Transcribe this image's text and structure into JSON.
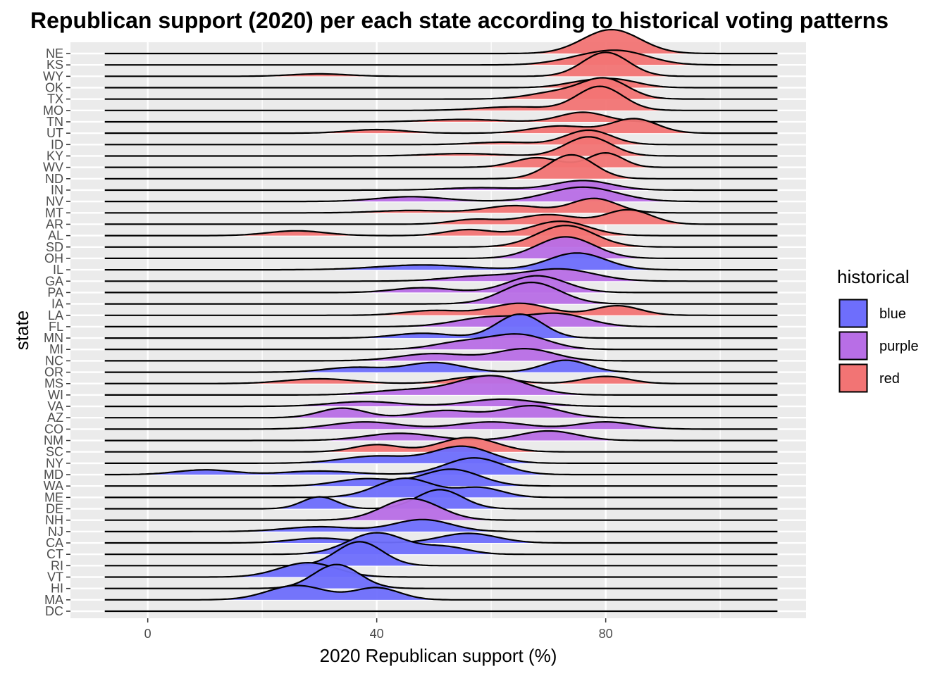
{
  "chart_data": {
    "type": "ridgeline",
    "title": "Republican support (2020) per each state according to historical voting patterns",
    "xlabel": "2020 Republican support (%)",
    "ylabel": "state",
    "xlim": [
      -13.5,
      115
    ],
    "x_ticks": [
      0,
      40,
      80
    ],
    "x_ticks_labels": [
      "0",
      "40",
      "80"
    ],
    "grid": true,
    "legend": {
      "title": "historical",
      "position": "right",
      "entries": [
        {
          "name": "blue",
          "color": "#6e6efc"
        },
        {
          "name": "purple",
          "color": "#b86ee6"
        },
        {
          "name": "red",
          "color": "#f27474"
        }
      ]
    },
    "states": [
      {
        "state": "NE",
        "group": "red",
        "peaks": [
          [
            81,
            5,
            1.0
          ]
        ]
      },
      {
        "state": "KS",
        "group": "red",
        "peaks": [
          [
            76,
            5,
            0.25
          ],
          [
            83,
            5,
            0.5
          ]
        ]
      },
      {
        "state": "WY",
        "group": "red",
        "peaks": [
          [
            30,
            5,
            0.1
          ],
          [
            80,
            4,
            1.0
          ]
        ]
      },
      {
        "state": "OK",
        "group": "red",
        "peaks": [
          [
            76,
            4,
            0.2
          ],
          [
            82,
            4,
            0.3
          ]
        ]
      },
      {
        "state": "TX",
        "group": "red",
        "peaks": [
          [
            72,
            5,
            0.3
          ],
          [
            80,
            4,
            0.8
          ]
        ]
      },
      {
        "state": "MO",
        "group": "red",
        "peaks": [
          [
            64,
            6,
            0.15
          ],
          [
            79,
            4,
            1.0
          ]
        ]
      },
      {
        "state": "TN",
        "group": "red",
        "peaks": [
          [
            55,
            6,
            0.1
          ],
          [
            76,
            4,
            0.4
          ]
        ]
      },
      {
        "state": "UT",
        "group": "red",
        "peaks": [
          [
            40,
            5,
            0.15
          ],
          [
            72,
            5,
            0.3
          ],
          [
            85,
            4,
            0.6
          ]
        ]
      },
      {
        "state": "ID",
        "group": "red",
        "peaks": [
          [
            62,
            5,
            0.1
          ],
          [
            77,
            4,
            0.6
          ]
        ]
      },
      {
        "state": "KY",
        "group": "red",
        "peaks": [
          [
            55,
            6,
            0.1
          ],
          [
            77,
            4,
            0.8
          ]
        ]
      },
      {
        "state": "WV",
        "group": "red",
        "peaks": [
          [
            68,
            4,
            0.4
          ],
          [
            80,
            3,
            0.6
          ]
        ]
      },
      {
        "state": "ND",
        "group": "red",
        "peaks": [
          [
            74,
            4,
            1.0
          ]
        ]
      },
      {
        "state": "IN",
        "group": "purple",
        "peaks": [
          [
            58,
            6,
            0.1
          ],
          [
            76,
            5,
            0.4
          ]
        ]
      },
      {
        "state": "NV",
        "group": "purple",
        "peaks": [
          [
            46,
            6,
            0.2
          ],
          [
            76,
            6,
            0.6
          ]
        ]
      },
      {
        "state": "MT",
        "group": "red",
        "peaks": [
          [
            46,
            6,
            0.1
          ],
          [
            64,
            5,
            0.3
          ],
          [
            78,
            4,
            0.6
          ]
        ]
      },
      {
        "state": "AR",
        "group": "red",
        "peaks": [
          [
            57,
            4,
            0.2
          ],
          [
            70,
            5,
            0.4
          ],
          [
            84,
            4,
            0.6
          ]
        ]
      },
      {
        "state": "AL",
        "group": "red",
        "peaks": [
          [
            26,
            5,
            0.2
          ],
          [
            56,
            4,
            0.25
          ],
          [
            72,
            5,
            0.6
          ]
        ]
      },
      {
        "state": "SD",
        "group": "red",
        "peaks": [
          [
            73,
            5,
            0.9
          ]
        ]
      },
      {
        "state": "OH",
        "group": "purple",
        "peaks": [
          [
            73,
            5,
            0.9
          ]
        ]
      },
      {
        "state": "IL",
        "group": "blue",
        "peaks": [
          [
            48,
            8,
            0.2
          ],
          [
            75,
            5,
            0.7
          ]
        ]
      },
      {
        "state": "GA",
        "group": "purple",
        "peaks": [
          [
            58,
            6,
            0.2
          ],
          [
            72,
            6,
            0.5
          ]
        ]
      },
      {
        "state": "PA",
        "group": "purple",
        "peaks": [
          [
            48,
            5,
            0.2
          ],
          [
            68,
            5,
            0.7
          ]
        ]
      },
      {
        "state": "IA",
        "group": "purple",
        "peaks": [
          [
            67,
            5,
            0.9
          ]
        ]
      },
      {
        "state": "LA",
        "group": "red",
        "peaks": [
          [
            50,
            5,
            0.2
          ],
          [
            65,
            5,
            0.5
          ],
          [
            82,
            4,
            0.4
          ]
        ]
      },
      {
        "state": "FL",
        "group": "purple",
        "peaks": [
          [
            60,
            6,
            0.4
          ],
          [
            72,
            5,
            0.5
          ]
        ]
      },
      {
        "state": "MN",
        "group": "blue",
        "peaks": [
          [
            48,
            5,
            0.2
          ],
          [
            65,
            4,
            1.0
          ]
        ]
      },
      {
        "state": "MI",
        "group": "purple",
        "peaks": [
          [
            55,
            5,
            0.3
          ],
          [
            65,
            5,
            0.6
          ]
        ]
      },
      {
        "state": "NC",
        "group": "purple",
        "peaks": [
          [
            50,
            6,
            0.3
          ],
          [
            66,
            5,
            0.5
          ]
        ]
      },
      {
        "state": "OR",
        "group": "blue",
        "peaks": [
          [
            36,
            5,
            0.2
          ],
          [
            50,
            5,
            0.4
          ],
          [
            73,
            4,
            0.5
          ]
        ]
      },
      {
        "state": "MS",
        "group": "red",
        "peaks": [
          [
            30,
            6,
            0.2
          ],
          [
            58,
            5,
            0.3
          ],
          [
            80,
            4,
            0.3
          ]
        ]
      },
      {
        "state": "WI",
        "group": "purple",
        "peaks": [
          [
            45,
            6,
            0.2
          ],
          [
            60,
            6,
            0.8
          ]
        ]
      },
      {
        "state": "VA",
        "group": "purple",
        "peaks": [
          [
            38,
            6,
            0.2
          ],
          [
            62,
            6,
            0.3
          ]
        ]
      },
      {
        "state": "AZ",
        "group": "purple",
        "peaks": [
          [
            34,
            4,
            0.4
          ],
          [
            52,
            5,
            0.3
          ],
          [
            67,
            5,
            0.5
          ]
        ]
      },
      {
        "state": "CO",
        "group": "purple",
        "peaks": [
          [
            38,
            6,
            0.3
          ],
          [
            60,
            6,
            0.3
          ],
          [
            80,
            5,
            0.3
          ]
        ]
      },
      {
        "state": "NM",
        "group": "purple",
        "peaks": [
          [
            44,
            6,
            0.3
          ],
          [
            70,
            5,
            0.4
          ]
        ]
      },
      {
        "state": "SC",
        "group": "red",
        "peaks": [
          [
            40,
            4,
            0.3
          ],
          [
            56,
            5,
            0.6
          ]
        ]
      },
      {
        "state": "NY",
        "group": "blue",
        "peaks": [
          [
            40,
            6,
            0.3
          ],
          [
            55,
            5,
            0.7
          ]
        ]
      },
      {
        "state": "MD",
        "group": "blue",
        "peaks": [
          [
            10,
            5,
            0.2
          ],
          [
            30,
            6,
            0.15
          ],
          [
            57,
            5,
            0.7
          ]
        ]
      },
      {
        "state": "WA",
        "group": "blue",
        "peaks": [
          [
            38,
            5,
            0.3
          ],
          [
            53,
            5,
            0.7
          ]
        ]
      },
      {
        "state": "ME",
        "group": "blue",
        "peaks": [
          [
            45,
            5,
            0.8
          ],
          [
            58,
            4,
            0.4
          ]
        ]
      },
      {
        "state": "DE",
        "group": "blue",
        "peaks": [
          [
            30,
            3,
            0.5
          ],
          [
            51,
            4,
            0.8
          ]
        ]
      },
      {
        "state": "NH",
        "group": "purple",
        "peaks": [
          [
            46,
            5,
            0.9
          ]
        ]
      },
      {
        "state": "NJ",
        "group": "blue",
        "peaks": [
          [
            30,
            6,
            0.2
          ],
          [
            48,
            5,
            0.5
          ]
        ]
      },
      {
        "state": "CA",
        "group": "blue",
        "peaks": [
          [
            30,
            5,
            0.2
          ],
          [
            56,
            5,
            0.4
          ]
        ]
      },
      {
        "state": "CT",
        "group": "blue",
        "peaks": [
          [
            40,
            5,
            0.9
          ],
          [
            52,
            4,
            0.3
          ]
        ]
      },
      {
        "state": "RI",
        "group": "blue",
        "peaks": [
          [
            37,
            4,
            1.0
          ]
        ]
      },
      {
        "state": "VT",
        "group": "blue",
        "peaks": [
          [
            28,
            5,
            0.6
          ]
        ]
      },
      {
        "state": "HI",
        "group": "blue",
        "peaks": [
          [
            33,
            4,
            1.0
          ]
        ]
      },
      {
        "state": "MA",
        "group": "blue",
        "peaks": [
          [
            26,
            5,
            0.6
          ],
          [
            40,
            4,
            0.5
          ]
        ]
      },
      {
        "state": "DC",
        "group": "blue",
        "peaks": []
      }
    ]
  }
}
